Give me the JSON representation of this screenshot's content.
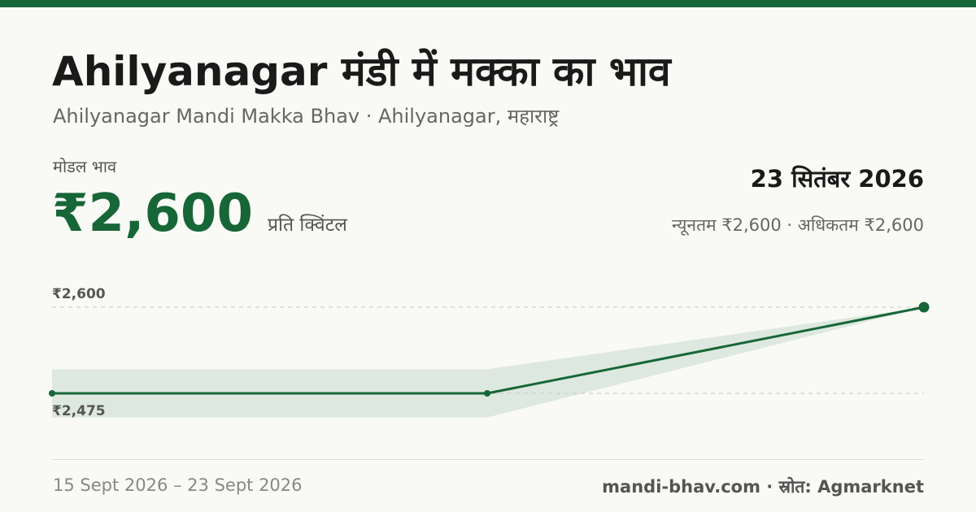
{
  "header": {
    "title": "Ahilyanagar मंडी में मक्का का भाव",
    "subtitle": "Ahilyanagar Mandi Makka Bhav · Ahilyanagar, महाराष्ट्र"
  },
  "price": {
    "label": "मोडल भाव",
    "value": "₹2,600",
    "unit": "प्रति क्विंटल"
  },
  "summary": {
    "date": "23 सितंबर 2026",
    "range": "न्यूनतम ₹2,600 · अधिकतम ₹2,600"
  },
  "footer": {
    "date_range": "15 Sept 2026 – 23 Sept 2026",
    "source": "mandi-bhav.com · स्रोत: Agmarknet"
  },
  "colors": {
    "accent": "#176637",
    "band": "#dde8e0",
    "gridline": "#c8c8c2"
  },
  "chart_data": {
    "type": "line",
    "x": [
      "15 Sept 2026",
      "?",
      "23 Sept 2026"
    ],
    "series": [
      {
        "values": [
          2475,
          2475,
          2600
        ]
      }
    ],
    "band": {
      "lower": [
        2440,
        2440,
        2600
      ],
      "upper": [
        2510,
        2510,
        2600
      ]
    },
    "reference_lines": [
      {
        "value": 2600,
        "label": "₹2,600"
      },
      {
        "value": 2475,
        "label": "₹2,475"
      }
    ],
    "grid": false
  }
}
